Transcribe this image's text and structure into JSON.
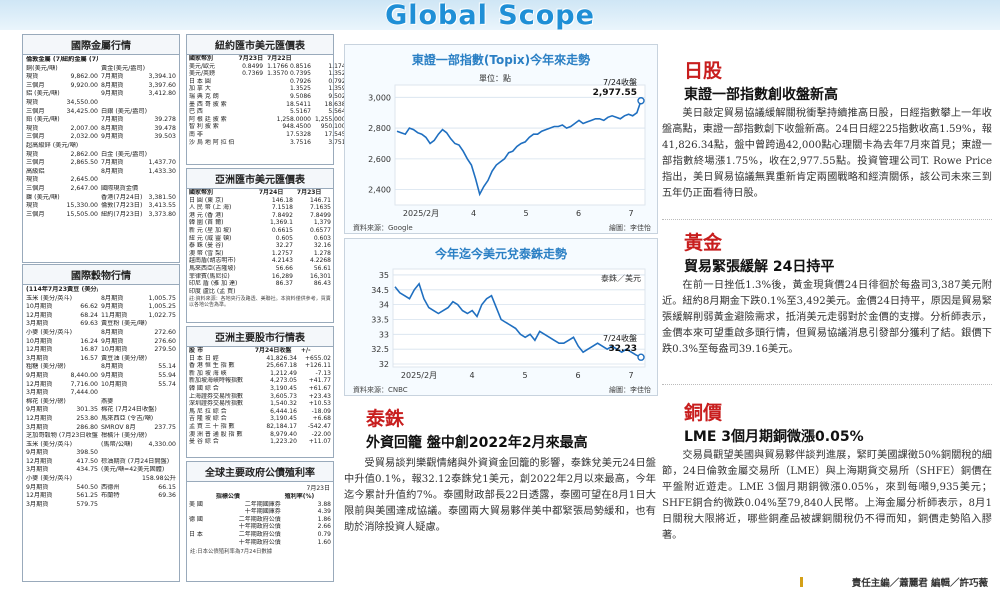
{
  "header": {
    "title": "Global Scope"
  },
  "metals": {
    "title": "國際金屬行情",
    "head": [
      "倫敦金屬 (7月23日收盤)",
      "紐約金屬 (7月23日收盤)"
    ],
    "rows": [
      [
        "銅(美元/噸)",
        "",
        "黃金(美元/盎司)",
        ""
      ],
      [
        "現貨",
        "9,862.00",
        "7月期貨",
        "3,394.10"
      ],
      [
        "三個月",
        "9,920.00",
        "8月期貨",
        "3,397.60"
      ],
      [
        "鋁 (美元/噸)",
        "",
        "9月期貨",
        "3,412.80"
      ],
      [
        "現貨",
        "34,550.00",
        "",
        ""
      ],
      [
        "三個月",
        "34,425.00",
        "白銀 (美元/盎司)",
        ""
      ],
      [
        "鉛 (美元/噸)",
        "",
        "7月期貨",
        "39.278"
      ],
      [
        "現貨",
        "2,007.00",
        "8月期貨",
        "39.478"
      ],
      [
        "三個月",
        "2,032.00",
        "9月期貨",
        "39.503"
      ],
      [
        "超高級鋅 (美元/噸)",
        "",
        "",
        ""
      ],
      [
        "現貨",
        "2,862.00",
        "白金 (美元/盎司)",
        ""
      ],
      [
        "三個月",
        "2,865.50",
        "7月期貨",
        "1,437.70"
      ],
      [
        "高級鋁",
        "",
        "8月期貨",
        "1,433.30"
      ],
      [
        "現貨",
        "2,645.00",
        "",
        ""
      ],
      [
        "三個月",
        "2,647.00",
        "國際現貨金價",
        ""
      ],
      [
        "鎳 (美元/噸)",
        "",
        "香港(7月24日)",
        "3,381.50"
      ],
      [
        "現貨",
        "15,330.00",
        "倫敦(7月23日)",
        "3,413.55"
      ],
      [
        "三個月",
        "15,505.00",
        "紐約(7月23日)",
        "3,373.80"
      ]
    ]
  },
  "grains": {
    "title": "國際穀物行情",
    "head": [
      "(114年7月23日收盤)",
      "黃豆 (美分/英斗)"
    ],
    "rows": [
      [
        "玉米 (美分/英斗)",
        "",
        "8月期貨",
        "1,005.75"
      ],
      [
        "10月期貨",
        "66.62",
        "9月期貨",
        "1,005.25"
      ],
      [
        "12月期貨",
        "68.24",
        "11月期貨",
        "1,022.75"
      ],
      [
        "3月期貨",
        "69.63",
        "黃豆粉 (美元/噸)",
        ""
      ],
      [
        "小麥 (美分/英斗)",
        "",
        "8月期貨",
        "272.60"
      ],
      [
        "10月期貨",
        "16.24",
        "9月期貨",
        "276.60"
      ],
      [
        "12月期貨",
        "16.87",
        "10月期貨",
        "279.50"
      ],
      [
        "3月期貨",
        "16.57",
        "黃豆油 (美分/磅)",
        ""
      ],
      [
        "粗糖 (美分/磅)",
        "",
        "8月期貨",
        "55.14"
      ],
      [
        "9月期貨",
        "8,440.00",
        "9月期貨",
        "55.94"
      ],
      [
        "12月期貨",
        "7,716.00",
        "10月期貨",
        "55.74"
      ],
      [
        "3月期貨",
        "7,444.00",
        "",
        ""
      ],
      [
        "棉花 (美分/磅)",
        "",
        "燕麥",
        ""
      ],
      [
        "9月期貨",
        "301.35",
        "棉花 (7月24日收盤)",
        ""
      ],
      [
        "12月期貨",
        "253.80",
        "馬來西亞 (令吉/噸)",
        ""
      ],
      [
        "3月期貨",
        "286.80",
        "SMROV 8月",
        "237.75"
      ],
      [
        "芝加哥穀物 (7月23日收盤)",
        "",
        "柑橘汁 (美分/磅)",
        ""
      ],
      [
        "玉米 (美分/英斗)",
        "",
        "(馬幣/公噸)",
        "4,330.00"
      ],
      [
        "9月期貨",
        "398.50",
        "",
        ""
      ],
      [
        "12月期貨",
        "417.50",
        "棕油期貨 (7月24日開盤)",
        ""
      ],
      [
        "3月期貨",
        "434.75",
        "(美元/噸=42美元固體)",
        ""
      ],
      [
        "小麥 (美分/英斗)",
        "",
        "",
        "158.98公升"
      ],
      [
        "9月期貨",
        "540.50",
        "西德州",
        "66.15"
      ],
      [
        "12月期貨",
        "561.25",
        "布蘭特",
        "69.36"
      ],
      [
        "3月期貨",
        "579.75",
        "",
        ""
      ]
    ]
  },
  "ny_fx": {
    "title": "紐約匯市美元匯價表",
    "head": [
      "國家幣別",
      "7月23日",
      "7月22日"
    ],
    "rows": [
      [
        "美元/歐元",
        "0.8499",
        "1.1766 0.8516",
        "1.1742"
      ],
      [
        "美元/英鎊",
        "0.7369",
        "1.3570 0.7395",
        "1.3522"
      ],
      [
        "日 本 圓",
        "",
        "0.7926",
        "0.7921"
      ],
      [
        "加 拿 大",
        "",
        "1.3525",
        "1.3594"
      ],
      [
        "瑞 典 克 朗",
        "",
        "9.5086",
        "9.5026"
      ],
      [
        "墨 西 哥 披 索",
        "",
        "18.5411",
        "18.6382"
      ],
      [
        "巴 西",
        "",
        "5.5167",
        "5.5647"
      ],
      [
        "阿 根 廷 披 索",
        "",
        "1,258.0000",
        "1,255.0000"
      ],
      [
        "智 利 披 索",
        "",
        "948.4500",
        "950.1000"
      ],
      [
        "南 非",
        "",
        "17.5328",
        "17.5459"
      ],
      [
        "沙 烏 地 阿 拉 伯",
        "",
        "3.7516",
        "3.7513"
      ]
    ]
  },
  "asia_fx": {
    "title": "亞洲匯市美元匯價表",
    "head": [
      "國家幣別",
      "7月24日",
      "7月23日"
    ],
    "rows": [
      [
        "日 圓 (東 京)",
        "146.18",
        "146.71"
      ],
      [
        "人 民 幣 (上 海)",
        "7.1518",
        "7.1635"
      ],
      [
        "港 元 (香 港)",
        "7.8492",
        "7.8499"
      ],
      [
        "韓 圜 (首 爾)",
        "1,369.1",
        "1,379"
      ],
      [
        "新 元 (星 加 坡)",
        "0.6615",
        "0.6577"
      ],
      [
        "紐 元 (威 靈 頓)",
        "0.605",
        "0.603"
      ],
      [
        "泰 銖 (曼 谷)",
        "32.27",
        "32.16"
      ],
      [
        "澳 幣 (雪 梨)",
        "1.2757",
        "1.278"
      ],
      [
        "越南盾(胡志明市)",
        "4.2143",
        "4.2268"
      ],
      [
        "馬來西亞(吉隆坡)",
        "56.66",
        "56.61"
      ],
      [
        "菲律賓(馬尼拉)",
        "16,289",
        "16,301"
      ],
      [
        "印尼 盾 (雅 加 達)",
        "86.37",
        "86.43"
      ],
      [
        "印度 盧比 (孟 買)",
        "",
        ""
      ]
    ],
    "note": "註:資料來源：各地央行及路透、美聯社。本資料僅供參考，買賣以各地公告為準。"
  },
  "asia_stocks": {
    "title": "亞洲主要股市行情表",
    "head": [
      "股 市",
      "7月24日收盤",
      "+/-"
    ],
    "rows": [
      [
        "日 本 日 經",
        "41,826.34",
        "+655.02"
      ],
      [
        "香 港 恒 生 指 數",
        "25,667.18",
        "+126.11"
      ],
      [
        "新 加 坡 海 峽",
        "1,212.49",
        "-7.13"
      ],
      [
        "新加坡海峽時報指數",
        "4,273.05",
        "+41.77"
      ],
      [
        "韓 國 綜 合",
        "3,190.45",
        "+61.67"
      ],
      [
        "上海證券交易所指數",
        "3,605.73",
        "+23.43"
      ],
      [
        "深圳證券交易所指數",
        "1,540.32",
        "+10.53"
      ],
      [
        "馬 尼 拉 綜 合",
        "6,444.16",
        "-18.09"
      ],
      [
        "吉 隆 坡 綜 合",
        "3,190.45",
        "+6.68"
      ],
      [
        "孟 買 三 十 指 數",
        "82,184.17",
        "-542.47"
      ],
      [
        "澳 洲 普 通 股 指 數",
        "8,979.40",
        "-22.00"
      ],
      [
        "曼 谷 綜 合",
        "1,223.20",
        "+11.07"
      ]
    ]
  },
  "bonds": {
    "title": "全球主要政府公債殖利率",
    "date": "7月23日",
    "head": [
      "",
      "指標公債",
      "殖利率(%)"
    ],
    "rows": [
      [
        "美 國",
        "二年期國庫券",
        "3.88"
      ],
      [
        "",
        "十年期國庫券",
        "4.39"
      ],
      [
        "德 國",
        "二年期政府公債",
        "1.86"
      ],
      [
        "",
        "十年期政府公債",
        "2.66"
      ],
      [
        "日 本",
        "二年期政府公債",
        "0.79"
      ],
      [
        "",
        "十年期政府公債",
        "1.60"
      ]
    ],
    "note": "註:日本公債殖利率為7月24日數據"
  },
  "chart1": {
    "title": "東證一部指數(Topix)今年來走勢",
    "unit": "單位：點",
    "callout_date": "7/24收盤",
    "callout_value": "2,977.55",
    "source": "資料來源：Google",
    "credit": "繪圖：李佳怡"
  },
  "chart2": {
    "title": "今年迄今美元兌泰銖走勢",
    "unit": "泰銖／美元",
    "callout_date": "7/24收盤",
    "callout_value": "32.23",
    "source": "資料來源：CNBC",
    "credit": "繪圖：李佳怡"
  },
  "chart_data": [
    {
      "type": "line",
      "title": "東證一部指數(Topix)今年來走勢",
      "ylabel": "單位：點",
      "xlabel": "",
      "x_ticks": [
        "2025/2月",
        "4",
        "5",
        "6",
        "7"
      ],
      "y_ticks": [
        2400,
        2600,
        2800,
        3000
      ],
      "ylim": [
        2300,
        3080
      ],
      "series": [
        {
          "values": [
            2780,
            2770,
            2760,
            2800,
            2790,
            2770,
            2760,
            2740,
            2700,
            2720,
            2760,
            2790,
            2770,
            2730,
            2700,
            2690,
            2650,
            2600,
            2560,
            2470,
            2370,
            2420,
            2460,
            2520,
            2560,
            2580,
            2600,
            2640,
            2650,
            2680,
            2700,
            2710,
            2740,
            2760,
            2760,
            2780,
            2790,
            2800,
            2810,
            2810,
            2820,
            2800,
            2810,
            2830,
            2850,
            2830,
            2840,
            2850,
            2860,
            2860,
            2850,
            2870,
            2880,
            2870,
            2860,
            2880,
            2890,
            2880,
            2900,
            2977.55
          ]
        }
      ],
      "last_value": 2977.55
    },
    {
      "type": "line",
      "title": "今年迄今美元兌泰銖走勢",
      "ylabel": "泰銖／美元",
      "xlabel": "",
      "x_ticks": [
        "2025/2月",
        "4",
        "5",
        "6",
        "7"
      ],
      "y_ticks": [
        32.0,
        32.5,
        33.0,
        33.5,
        34.0,
        34.5,
        35.0
      ],
      "ylim": [
        31.9,
        35.2
      ],
      "series": [
        {
          "values": [
            34.6,
            34.4,
            34.3,
            34.2,
            34.5,
            34.7,
            34.2,
            33.9,
            33.8,
            33.7,
            33.8,
            33.9,
            34.1,
            34.0,
            33.8,
            33.7,
            33.8,
            33.6,
            34.0,
            34.2,
            34.3,
            33.9,
            33.5,
            33.4,
            33.3,
            33.2,
            33.0,
            32.9,
            33.0,
            32.8,
            33.1,
            33.0,
            32.9,
            32.8,
            32.7,
            32.7,
            32.8,
            32.9,
            32.6,
            32.4,
            32.5,
            32.6,
            32.7,
            32.6,
            32.5,
            32.6,
            32.5,
            32.4,
            32.5,
            32.4,
            32.3,
            32.23
          ]
        }
      ],
      "last_value": 32.23
    }
  ],
  "japan": {
    "tag": "日股",
    "headline": "東證一部指數創收盤新高",
    "body": "美日敲定貿易協議緩解關稅衝擊持續推高日股，日經指數攀上一年收盤高點，東證一部指數創下收盤新高。24日日經225指數收高1.59%，報41,826.34點，盤中曾跨過42,000點心理關卡為去年7月來首見；東證一部指數終場漲1.75%，收在2,977.55點。投資管理公司T. Rowe Price指出，美日貿易協議無異重新肯定兩國戰略和經濟關係，該公司未來三到五年仍正面看待日股。"
  },
  "gold": {
    "tag": "黃金",
    "headline": "貿易緊張緩解 24日持平",
    "body": "在前一日挫低1.3%後，黃金現貨價24日徘徊於每盎司3,387美元附近。紐約8月期金下跌0.1%至3,492美元。金價24日持平，原因是貿易緊張緩解削弱黃金避險需求，抵消美元走弱對於金價的支撐。分析師表示，金價本來可望重啟多頭行情，但貿易協議消息引發部分獲利了結。銀價下跌0.3%至每盎司39.16美元。"
  },
  "thai": {
    "tag": "泰銖",
    "headline": "外資回籠 盤中創2022年2月來最高",
    "body": "受貿易談判樂觀情緒與外資資金回籠的影響，泰銖兌美元24日盤中升值0.1%，報32.12泰銖兌1美元，創2022年2月以來最高，今年迄今累計升值約7%。泰國財政部長22日透露，泰國可望在8月1日大限前與美國達成協議。泰國兩大貿易夥伴美中都緊張局勢緩和，也有助於消除投資人疑慮。"
  },
  "copper": {
    "tag": "銅價",
    "headline": "LME 3個月期銅微漲0.05%",
    "body": "交易員觀望美國與貿易夥伴談判進展，緊盯美國課徵50%銅關稅的細節，24日倫敦金屬交易所（LME）與上海期貨交易所（SHFE）銅價在平盤附近遊走。LME 3個月期銅微漲0.05%，來到每噸9,935美元；SHFE銅合約微跌0.04%至79,840人民幣。上海金屬分析師表示，8月1日關稅大限將近，哪些銅產品被課銅關稅仍不得而知，銅價走勢陷入膠著。"
  },
  "footer": {
    "text": "責任主編／蕭麗君 編輯／許巧薇"
  }
}
